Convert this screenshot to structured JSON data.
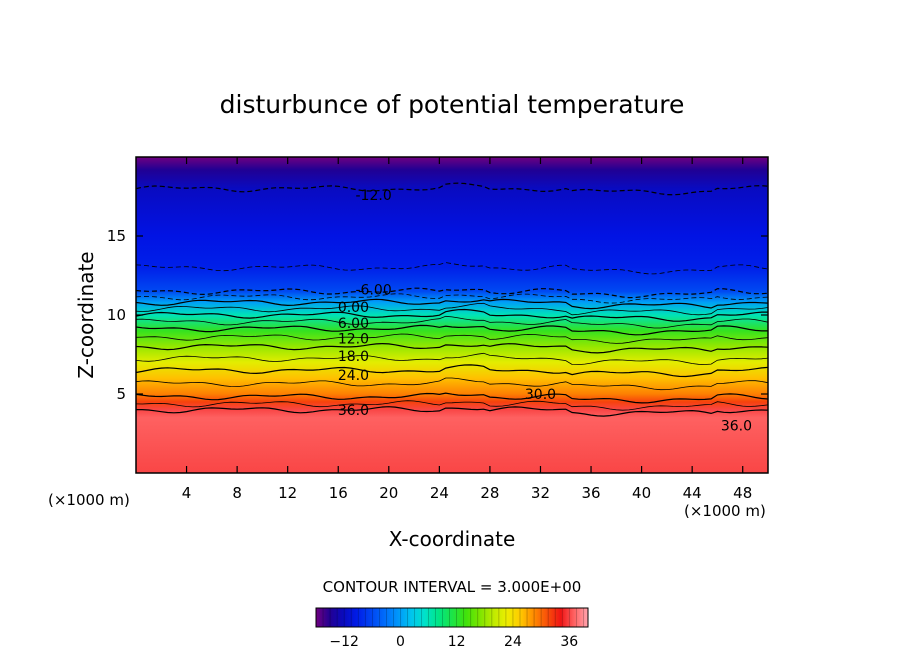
{
  "chart_data": {
    "type": "contour",
    "title": "disturbunce of potential temperature",
    "xlabel": "X-coordinate",
    "ylabel": "Z-coordinate",
    "x_unit_note": "(×1000 m)",
    "x_unit_note_right": "(×1000 m)",
    "xlim": [
      0,
      50
    ],
    "ylim": [
      0,
      20
    ],
    "x_ticks": [
      4,
      8,
      12,
      16,
      20,
      24,
      28,
      32,
      36,
      40,
      44,
      48
    ],
    "x_tick_labels": [
      "4",
      "8",
      "12",
      "16",
      "20",
      "24",
      "28",
      "32",
      "36",
      "40",
      "44",
      "48"
    ],
    "y_ticks": [
      5,
      10,
      15
    ],
    "y_tick_labels": [
      "5",
      "10",
      "15"
    ],
    "contour_interval_text": "CONTOUR INTERVAL = 3.000E+00",
    "contour_interval": 3.0,
    "colorbar_range": [
      -18,
      40
    ],
    "colorbar_ticks": [
      -12,
      0,
      12,
      24,
      36
    ],
    "colorbar_tick_labels": [
      "−12",
      "0",
      "12",
      "24",
      "36"
    ],
    "profile_z": [
      0,
      3.5,
      4.0,
      4.5,
      5.0,
      6.0,
      7.0,
      8.0,
      9.0,
      10.0,
      10.8,
      11.5,
      13.0,
      15.0,
      16.5,
      18.0,
      19.2,
      20.0
    ],
    "profile_theta": [
      36,
      37,
      36,
      32,
      29,
      26,
      22,
      18,
      13,
      6,
      0,
      -6,
      -9,
      -10,
      -11,
      -12,
      -15,
      -18
    ],
    "contour_labels": [
      {
        "text": "-12.0",
        "x": 18.8,
        "z": 17.6
      },
      {
        "text": "-6.00",
        "x": 18.8,
        "z": 11.6
      },
      {
        "text": "0.00",
        "x": 17.2,
        "z": 10.5
      },
      {
        "text": "6.00",
        "x": 17.2,
        "z": 9.5
      },
      {
        "text": "12.0",
        "x": 17.2,
        "z": 8.5
      },
      {
        "text": "18.0",
        "x": 17.2,
        "z": 7.4
      },
      {
        "text": "24.0",
        "x": 17.2,
        "z": 6.2
      },
      {
        "text": "30.0",
        "x": 32.0,
        "z": 5.0
      },
      {
        "text": "36.0",
        "x": 17.2,
        "z": 4.0
      },
      {
        "text": "36.0",
        "x": 47.5,
        "z": 3.0
      }
    ]
  }
}
